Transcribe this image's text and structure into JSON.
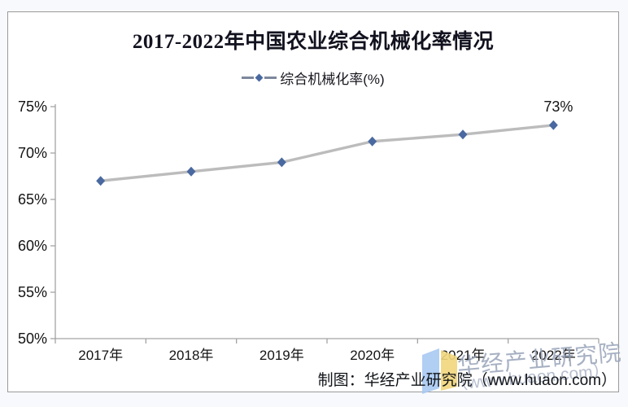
{
  "chart_data": {
    "type": "line",
    "title": "2017-2022年中国农业综合机械化率情况",
    "legend": "综合机械化率(%)",
    "categories": [
      "2017年",
      "2018年",
      "2019年",
      "2020年",
      "2021年",
      "2022年"
    ],
    "series": [
      {
        "name": "综合机械化率(%)",
        "values": [
          67,
          68,
          69,
          71.25,
          72,
          73
        ]
      }
    ],
    "ylim": [
      50,
      75
    ],
    "y_ticks": [
      {
        "value": 50,
        "label": "50%"
      },
      {
        "value": 55,
        "label": "55%"
      },
      {
        "value": 60,
        "label": "60%"
      },
      {
        "value": 65,
        "label": "65%"
      },
      {
        "value": 70,
        "label": "70%"
      },
      {
        "value": 75,
        "label": "75%"
      }
    ],
    "last_point_label": "73%",
    "grid": false,
    "legend_position": "top",
    "colors": {
      "line": "#bcbcbc",
      "marker": "#4a69a1",
      "axis": "#a3a3a3",
      "tick_label": "#141414",
      "title": "#12121f"
    }
  },
  "footer": {
    "attribution": "制图：华经产业研究院（www.huaon.com）"
  },
  "watermark": {
    "text": "华经产业研究院",
    "url": "（www.huaon.com）",
    "logo_blue": "#a9c9f2",
    "logo_yellow": "#f1d77d"
  }
}
